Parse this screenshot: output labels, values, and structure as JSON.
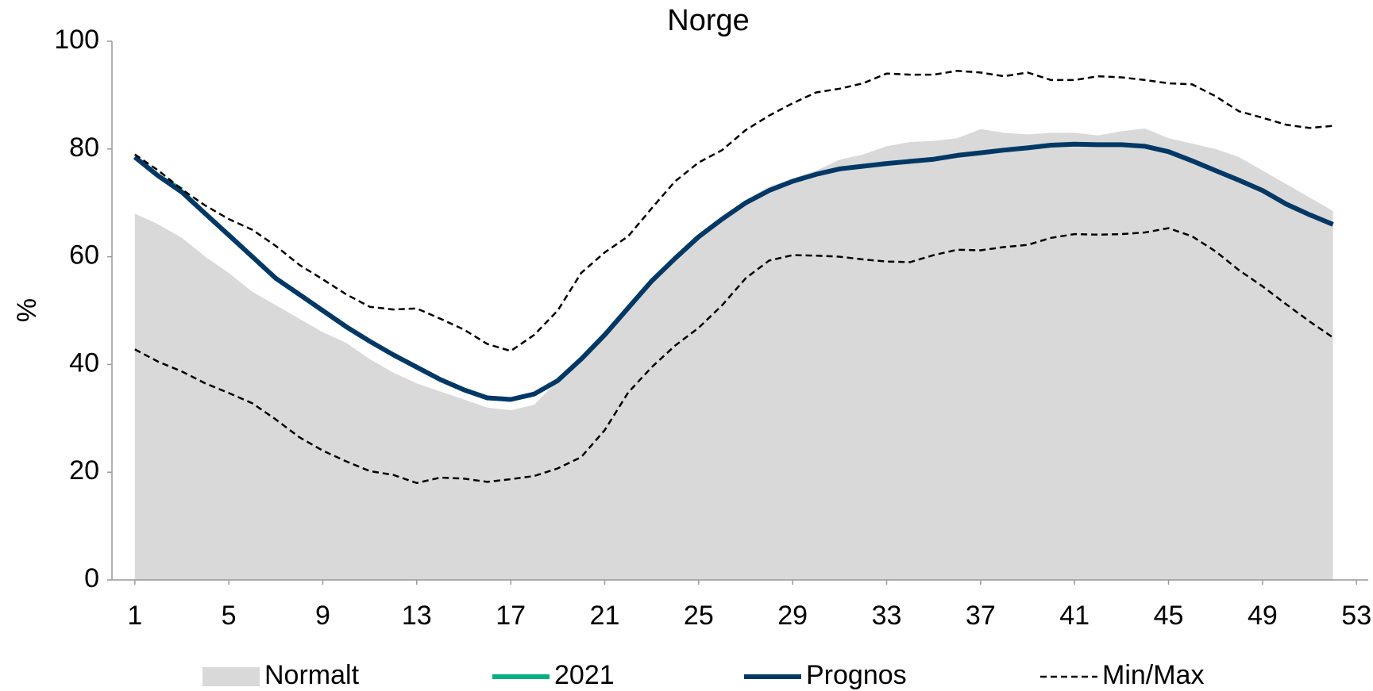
{
  "chart_data": {
    "type": "line",
    "title": "Norge",
    "y_label": "%",
    "x": [
      1,
      2,
      3,
      4,
      5,
      6,
      7,
      8,
      9,
      10,
      11,
      12,
      13,
      14,
      15,
      16,
      17,
      18,
      19,
      20,
      21,
      22,
      23,
      24,
      25,
      26,
      27,
      28,
      29,
      30,
      31,
      32,
      33,
      34,
      35,
      36,
      37,
      38,
      39,
      40,
      41,
      42,
      43,
      44,
      45,
      46,
      47,
      48,
      49,
      50,
      51,
      52
    ],
    "xlim": [
      0.5,
      53.5
    ],
    "xticks": [
      1,
      5,
      9,
      13,
      17,
      21,
      25,
      29,
      33,
      37,
      41,
      45,
      49,
      53
    ],
    "ylim": [
      0,
      100
    ],
    "yticks": [
      0,
      20,
      40,
      60,
      80,
      100
    ],
    "grid": false,
    "legend": "bottom",
    "series": [
      {
        "name": "Normalt",
        "style": "area",
        "color": "#d9d9d9",
        "values": [
          68,
          66,
          63.5,
          60,
          57,
          53.5,
          51,
          48.5,
          46,
          44,
          41,
          38.5,
          36.5,
          35,
          33.5,
          32,
          31.5,
          32.5,
          37,
          41,
          45.5,
          50,
          55,
          59.5,
          63.5,
          67.5,
          70.5,
          73,
          74.5,
          76,
          78,
          79,
          80.5,
          81.3,
          81.5,
          82,
          83.7,
          83,
          82.7,
          83,
          83,
          82.5,
          83.3,
          83.8,
          82,
          81,
          80,
          78.5,
          76,
          73.5,
          71,
          68.5
        ]
      },
      {
        "name": "2021",
        "style": "solid",
        "color": "#00b084",
        "values": [
          78.5,
          75,
          72.5,
          null,
          null,
          null,
          null,
          null,
          null,
          null,
          null,
          null,
          null,
          null,
          null,
          null,
          null,
          null,
          null,
          null,
          null,
          null,
          null,
          null,
          null,
          null,
          null,
          null,
          null,
          null,
          null,
          null,
          null,
          null,
          null,
          null,
          null,
          null,
          null,
          null,
          null,
          null,
          null,
          null,
          null,
          null,
          null,
          null,
          null,
          null,
          null,
          null
        ]
      },
      {
        "name": "Prognos",
        "style": "solid",
        "color": "#003865",
        "values": [
          78.5,
          75,
          72,
          68,
          64,
          60,
          56,
          53,
          50,
          47,
          44.3,
          41.8,
          39.5,
          37.2,
          35.3,
          33.8,
          33.5,
          34.5,
          37,
          41,
          45.5,
          50.5,
          55.5,
          59.7,
          63.7,
          67,
          70,
          72.3,
          74,
          75.3,
          76.3,
          76.8,
          77.3,
          77.7,
          78.1,
          78.8,
          79.3,
          79.8,
          80.2,
          80.7,
          80.9,
          80.8,
          80.8,
          80.5,
          79.5,
          77.8,
          76,
          74.2,
          72.3,
          69.8,
          67.8,
          66
        ]
      },
      {
        "name": "Min/Max",
        "style": "dashed",
        "color": "#000000",
        "values": [
          79,
          76,
          72.5,
          69.5,
          67,
          65,
          62,
          58.5,
          55.8,
          53,
          50.7,
          50.2,
          50.4,
          48.5,
          46.5,
          43.8,
          42.5,
          45.5,
          50,
          57,
          60.8,
          63.8,
          69,
          74,
          77.5,
          79.8,
          83.5,
          86.2,
          88.5,
          90.5,
          91.2,
          92.2,
          94,
          93.8,
          93.8,
          94.5,
          94.2,
          93.5,
          94.2,
          92.8,
          92.8,
          93.5,
          93.3,
          92.8,
          92.2,
          92,
          89.8,
          87,
          85.8,
          84.5,
          83.9,
          84.3
        ],
        "lower": [
          42.8,
          40.5,
          38.7,
          36.5,
          34.7,
          32.8,
          29.8,
          26.5,
          24,
          22,
          20.2,
          19.5,
          18,
          19,
          18.8,
          18.2,
          18.7,
          19.3,
          20.7,
          22.8,
          27.8,
          34.8,
          39.5,
          43.5,
          46.8,
          51,
          56,
          59.3,
          60.3,
          60.2,
          60,
          59.5,
          59.1,
          59,
          60.3,
          61.3,
          61.2,
          61.8,
          62.2,
          63.5,
          64.2,
          64.1,
          64.2,
          64.5,
          65.3,
          63.8,
          61,
          57.5,
          54.5,
          51.2,
          48,
          45
        ]
      }
    ]
  }
}
